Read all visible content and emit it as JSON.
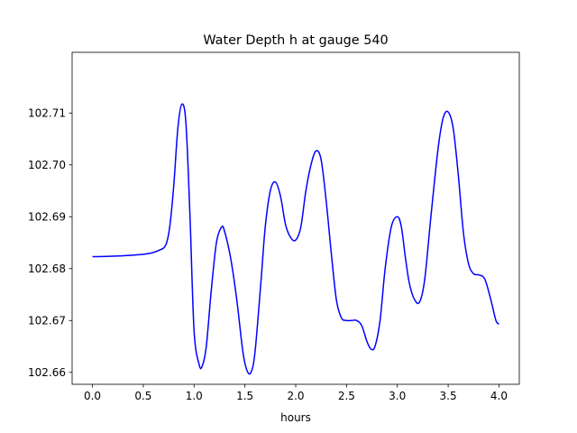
{
  "chart_data": {
    "type": "line",
    "title": "Water Depth h at gauge 540",
    "xlabel": "hours",
    "ylabel": "",
    "xlim": [
      -0.2,
      4.2
    ],
    "ylim": [
      102.6577,
      102.7217
    ],
    "xticks": [
      0.0,
      0.5,
      1.0,
      1.5,
      2.0,
      2.5,
      3.0,
      3.5,
      4.0
    ],
    "xtick_labels": [
      "0.0",
      "0.5",
      "1.0",
      "1.5",
      "2.0",
      "2.5",
      "3.0",
      "3.5",
      "4.0"
    ],
    "yticks": [
      102.66,
      102.67,
      102.68,
      102.69,
      102.7,
      102.71
    ],
    "ytick_labels": [
      "102.66",
      "102.67",
      "102.68",
      "102.69",
      "102.70",
      "102.71"
    ],
    "grid": false,
    "series": [
      {
        "color": "#0000ff",
        "x": [
          0.0,
          0.2,
          0.4,
          0.55,
          0.65,
          0.72,
          0.76,
          0.8,
          0.84,
          0.88,
          0.92,
          0.96,
          1.0,
          1.05,
          1.08,
          1.12,
          1.17,
          1.22,
          1.27,
          1.3,
          1.36,
          1.42,
          1.48,
          1.52,
          1.56,
          1.6,
          1.66,
          1.7,
          1.75,
          1.8,
          1.85,
          1.9,
          1.95,
          2.0,
          2.05,
          2.1,
          2.15,
          2.2,
          2.25,
          2.3,
          2.35,
          2.4,
          2.45,
          2.5,
          2.55,
          2.6,
          2.65,
          2.7,
          2.74,
          2.78,
          2.83,
          2.88,
          2.94,
          3.0,
          3.04,
          3.08,
          3.12,
          3.17,
          3.22,
          3.27,
          3.33,
          3.4,
          3.45,
          3.5,
          3.55,
          3.6,
          3.65,
          3.7,
          3.75,
          3.8,
          3.86,
          3.92,
          3.97,
          4.0
        ],
        "y": [
          102.6823,
          102.6824,
          102.6826,
          102.6829,
          102.6835,
          102.6845,
          102.688,
          102.696,
          102.707,
          102.7117,
          102.708,
          102.69,
          102.668,
          102.6615,
          102.6612,
          102.665,
          102.676,
          102.685,
          102.688,
          102.6872,
          102.682,
          102.674,
          102.664,
          102.6604,
          102.66,
          102.664,
          102.678,
          102.688,
          102.695,
          102.6967,
          102.694,
          102.6885,
          102.686,
          102.6855,
          102.688,
          102.695,
          102.7,
          102.7027,
          102.701,
          102.693,
          102.683,
          102.674,
          102.6705,
          102.67,
          102.67,
          102.67,
          102.669,
          102.666,
          102.6645,
          102.665,
          102.67,
          102.68,
          102.688,
          102.69,
          102.688,
          102.682,
          102.677,
          102.674,
          102.6736,
          102.678,
          102.69,
          102.703,
          102.709,
          102.7102,
          102.707,
          102.698,
          102.687,
          102.681,
          102.679,
          102.6788,
          102.678,
          102.674,
          102.67,
          102.6693
        ]
      }
    ]
  }
}
